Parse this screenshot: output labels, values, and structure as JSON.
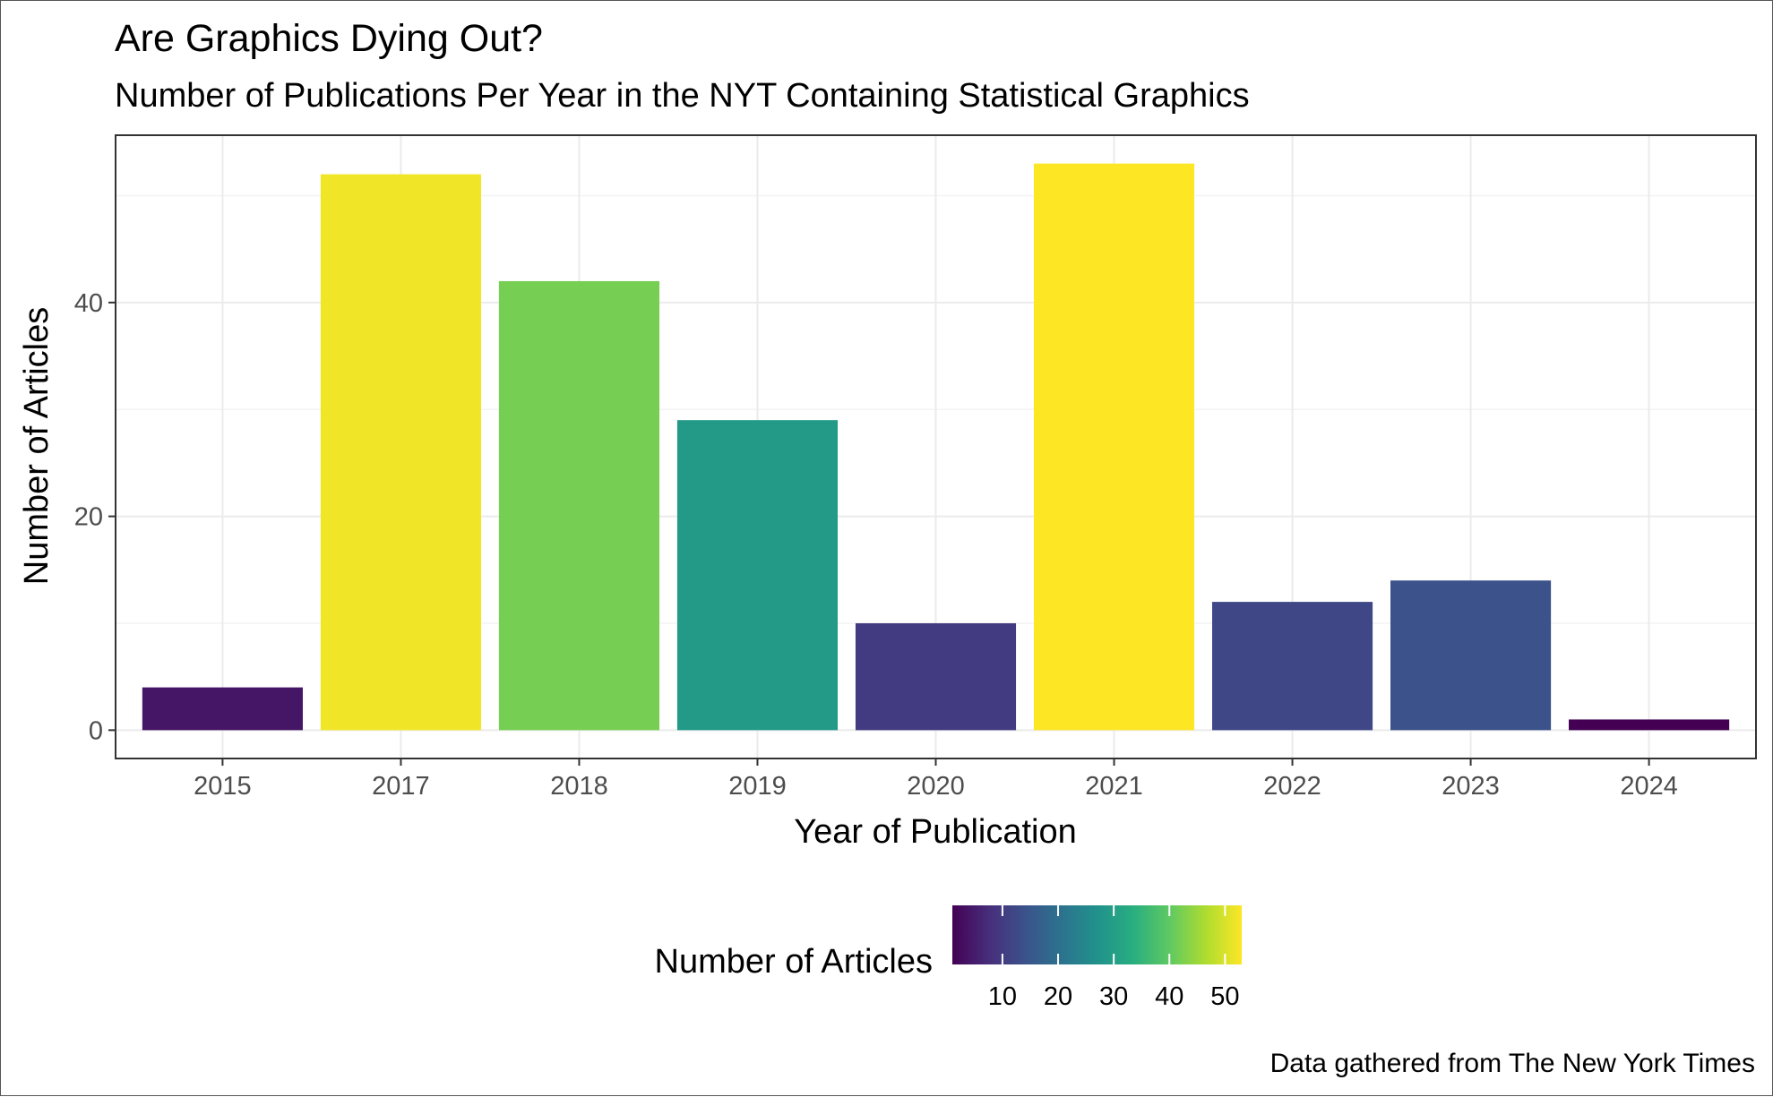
{
  "chart_data": {
    "type": "bar",
    "title": "Are Graphics Dying Out?",
    "subtitle": "Number of Publications Per Year in the NYT Containing Statistical Graphics",
    "xlabel": "Year of Publication",
    "ylabel": "Number of Articles",
    "caption": "Data gathered from The New York Times",
    "categories": [
      "2015",
      "2017",
      "2018",
      "2019",
      "2020",
      "2021",
      "2022",
      "2023",
      "2024"
    ],
    "values": [
      4,
      52,
      42,
      29,
      10,
      53,
      12,
      14,
      1
    ],
    "ylim": [
      -2.65,
      55.65
    ],
    "y_ticks": [
      0,
      20,
      40
    ],
    "y_tick_labels": [
      "0",
      "20",
      "40"
    ],
    "grid": true,
    "legend": {
      "title": "Number of Articles",
      "position": "bottom",
      "type": "colorbar",
      "range": [
        1,
        53
      ],
      "ticks": [
        10,
        20,
        30,
        40,
        50
      ],
      "tick_labels": [
        "10",
        "20",
        "30",
        "40",
        "50"
      ],
      "palette": [
        "#440154",
        "#472d7b",
        "#3b528b",
        "#2c728e",
        "#21918c",
        "#28ae80",
        "#5ec962",
        "#addc30",
        "#fde725"
      ]
    },
    "colors": {
      "panel_border": "#333333",
      "grid_major": "#ebebeb",
      "grid_minor": "#f3f3f3",
      "tick_label": "#4d4d4d"
    }
  }
}
